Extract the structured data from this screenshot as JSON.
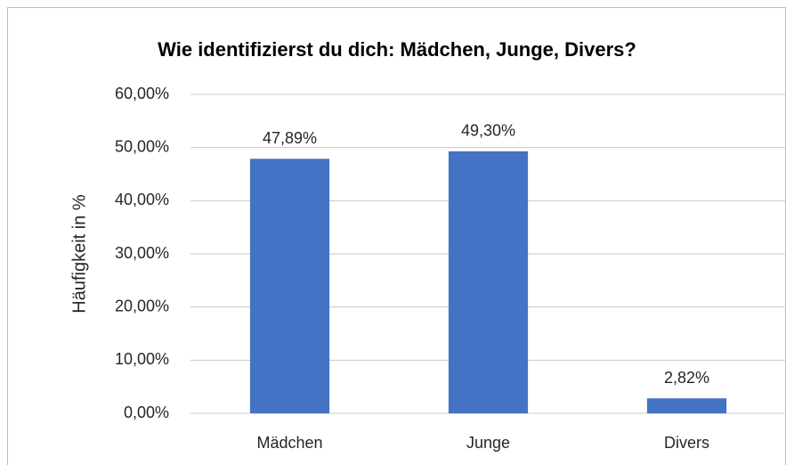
{
  "chart_data": {
    "type": "bar",
    "title": "Wie identifizierst du dich: Mädchen, Junge, Divers?",
    "y_label": "Häufigkeit in %",
    "categories": [
      "Mädchen",
      "Junge",
      "Divers"
    ],
    "values": [
      47.89,
      49.3,
      2.82
    ],
    "value_labels": [
      "47,89%",
      "49,30%",
      "2,82%"
    ],
    "color": "#4472c4",
    "ylim": [
      0,
      60
    ],
    "yticks": [
      {
        "value": 0,
        "label": "0,00%"
      },
      {
        "value": 10,
        "label": "10,00%"
      },
      {
        "value": 20,
        "label": "20,00%"
      },
      {
        "value": 30,
        "label": "30,00%"
      },
      {
        "value": 40,
        "label": "40,00%"
      },
      {
        "value": 50,
        "label": "50,00%"
      },
      {
        "value": 60,
        "label": "60,00%"
      }
    ],
    "grid": true
  }
}
